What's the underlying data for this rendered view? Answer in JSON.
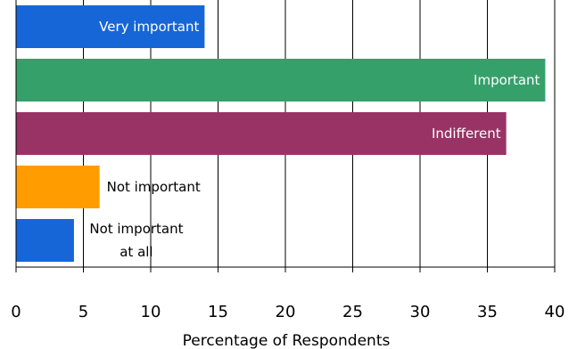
{
  "chart_data": {
    "type": "bar",
    "orientation": "horizontal",
    "categories": [
      "Very important",
      "Important",
      "Indifferent",
      "Not important",
      "Not important at all"
    ],
    "category_label_lines": [
      [
        "Very important"
      ],
      [
        "Important"
      ],
      [
        "Indifferent"
      ],
      [
        "Not important"
      ],
      [
        "Not important",
        "at all"
      ]
    ],
    "values": [
      14,
      39.3,
      36.4,
      6.2,
      4.3
    ],
    "colors": [
      "#1666d8",
      "#36a06b",
      "#993366",
      "#ff9c00",
      "#1666d8"
    ],
    "label_colors": [
      "#ffffff",
      "#ffffff",
      "#ffffff",
      "#000000",
      "#000000"
    ],
    "label_placement": [
      "inside",
      "inside",
      "inside",
      "outside",
      "outside"
    ],
    "xlabel": "Percentage of Respondents",
    "xlim": [
      0,
      40
    ],
    "xticks": [
      0,
      5,
      10,
      15,
      20,
      25,
      30,
      35,
      40
    ],
    "grid": true
  }
}
